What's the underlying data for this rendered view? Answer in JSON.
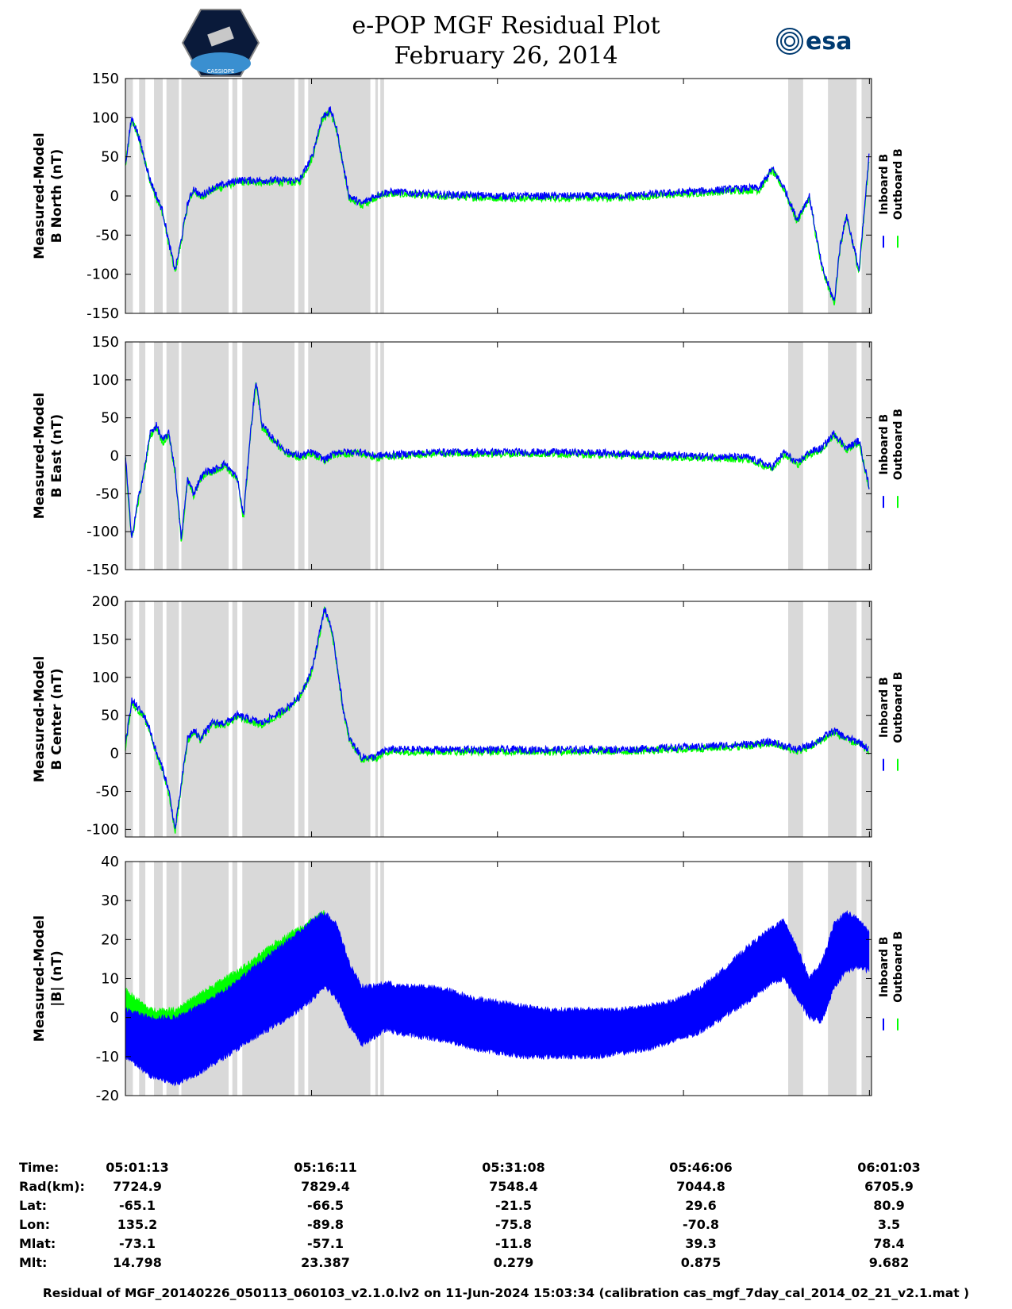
{
  "header": {
    "title": "e-POP MGF Residual Plot",
    "subtitle": "February 26, 2014",
    "logo_left_text": "CASSIOPE",
    "logo_right_text": "esa"
  },
  "colors": {
    "inboard": "#0000ff",
    "outboard": "#00ff00",
    "shade": "#d9d9d9"
  },
  "chart_data": [
    {
      "type": "line",
      "title": "B North",
      "ylabel": [
        "Measured-Model",
        "B North (nT)"
      ],
      "ylim": [
        -150,
        150
      ],
      "yticks": [
        -150,
        -100,
        -50,
        0,
        50,
        100,
        150
      ],
      "legend": [
        "Inboard B",
        "Outboard B"
      ],
      "legend_position": "right",
      "series_x_minutes": [
        0,
        0.5,
        1,
        1.5,
        2,
        2.5,
        3,
        3.5,
        4,
        4.5,
        5,
        5.5,
        6,
        6.5,
        7,
        8,
        9,
        10,
        11,
        12,
        13,
        14,
        15,
        15.8,
        16.5,
        17,
        17.5,
        18,
        19,
        20,
        21,
        22,
        25,
        30,
        35,
        40,
        45,
        50,
        51,
        52,
        53,
        54,
        55,
        56,
        57,
        57.5,
        58,
        59,
        59.8
      ],
      "series_y_inboard": [
        40,
        100,
        80,
        50,
        20,
        0,
        -20,
        -60,
        -95,
        -55,
        -10,
        10,
        0,
        5,
        10,
        15,
        20,
        20,
        20,
        20,
        20,
        20,
        50,
        100,
        110,
        85,
        40,
        0,
        -10,
        0,
        5,
        5,
        2,
        0,
        0,
        0,
        5,
        10,
        10,
        35,
        10,
        -30,
        0,
        -90,
        -135,
        -60,
        -25,
        -95,
        50
      ]
    },
    {
      "type": "line",
      "title": "B East",
      "ylabel": [
        "Measured-Model",
        "B East (nT)"
      ],
      "ylim": [
        -150,
        150
      ],
      "yticks": [
        -150,
        -100,
        -50,
        0,
        50,
        100,
        150
      ],
      "legend": [
        "Inboard B",
        "Outboard B"
      ],
      "legend_position": "right",
      "series_x_minutes": [
        0,
        0.5,
        1,
        1.5,
        2,
        2.5,
        3,
        3.5,
        4,
        4.5,
        5,
        5.5,
        6,
        6.5,
        7,
        8,
        9,
        9.5,
        10,
        10.5,
        11,
        12,
        13,
        14,
        15,
        16,
        17,
        18,
        19,
        20,
        25,
        30,
        35,
        40,
        45,
        50,
        51,
        52,
        53,
        54,
        55,
        56,
        57,
        58,
        59,
        59.8
      ],
      "series_y_inboard": [
        0,
        -110,
        -60,
        -20,
        30,
        40,
        20,
        30,
        -20,
        -110,
        -30,
        -50,
        -30,
        -20,
        -20,
        -10,
        -30,
        -80,
        20,
        100,
        40,
        20,
        5,
        0,
        5,
        -5,
        5,
        5,
        5,
        0,
        5,
        5,
        5,
        3,
        0,
        -2,
        -8,
        -15,
        5,
        -10,
        5,
        10,
        30,
        10,
        20,
        -40
      ]
    },
    {
      "type": "line",
      "title": "B Center",
      "ylabel": [
        "Measured-Model",
        "B Center (nT)"
      ],
      "ylim": [
        -110,
        200
      ],
      "yticks": [
        -100,
        -50,
        0,
        50,
        100,
        150,
        200
      ],
      "legend": [
        "Inboard B",
        "Outboard B"
      ],
      "legend_position": "right",
      "series_x_minutes": [
        0,
        0.5,
        1,
        1.5,
        2,
        2.5,
        3,
        3.5,
        4,
        4.5,
        5,
        5.5,
        6,
        6.5,
        7,
        8,
        9,
        10,
        11,
        12,
        13,
        14,
        15,
        16,
        16.5,
        17,
        17.5,
        18,
        19,
        20,
        21,
        22,
        25,
        30,
        35,
        40,
        45,
        50,
        52,
        54,
        55,
        56,
        57,
        58,
        59,
        59.8
      ],
      "series_y_inboard": [
        10,
        70,
        60,
        50,
        30,
        0,
        -20,
        -50,
        -100,
        -40,
        20,
        30,
        20,
        30,
        40,
        40,
        50,
        45,
        40,
        50,
        60,
        75,
        110,
        190,
        170,
        120,
        60,
        20,
        -5,
        -5,
        5,
        5,
        5,
        5,
        5,
        5,
        8,
        12,
        15,
        5,
        10,
        20,
        30,
        20,
        15,
        5
      ]
    },
    {
      "type": "area",
      "title": "|B|",
      "ylabel": [
        "Measured-Model",
        "|B| (nT)"
      ],
      "ylim": [
        -20,
        40
      ],
      "yticks": [
        -20,
        -10,
        0,
        10,
        20,
        30,
        40
      ],
      "legend": [
        "Inboard B",
        "Outboard B"
      ],
      "legend_position": "right",
      "series_x_minutes": [
        0,
        2,
        4,
        6,
        8,
        10,
        12,
        14,
        15.5,
        16,
        17,
        18,
        19,
        20,
        21,
        22,
        24,
        26,
        28,
        30,
        32,
        34,
        36,
        38,
        40,
        42,
        44,
        46,
        48,
        50,
        52,
        53,
        54,
        55,
        56,
        57,
        58,
        59,
        59.8
      ],
      "series_upper_inboard": [
        2,
        0,
        0,
        3,
        7,
        12,
        17,
        22,
        26,
        27,
        24,
        14,
        8,
        8,
        9,
        8,
        8,
        7,
        5,
        4,
        3,
        2,
        2,
        2,
        2,
        3,
        4,
        7,
        12,
        18,
        23,
        25,
        18,
        10,
        14,
        24,
        27,
        25,
        22
      ],
      "series_lower_inboard": [
        -10,
        -15,
        -17,
        -14,
        -10,
        -6,
        -2,
        2,
        6,
        8,
        5,
        -2,
        -7,
        -5,
        -3,
        -4,
        -5,
        -6,
        -8,
        -9,
        -10,
        -10,
        -10,
        -10,
        -9,
        -8,
        -6,
        -4,
        0,
        4,
        9,
        10,
        5,
        0,
        -1,
        8,
        12,
        13,
        12
      ],
      "series_upper_outboard": [
        7,
        2,
        2,
        6,
        10,
        14,
        19,
        23,
        26,
        27
      ],
      "series_lower_outboard": [
        -2,
        -5,
        -5,
        -2,
        2,
        6,
        10,
        14,
        17,
        20
      ]
    }
  ],
  "shaded_intervals_minutes": [
    [
      0,
      0.6
    ],
    [
      1.1,
      1.6
    ],
    [
      2.3,
      3.0
    ],
    [
      3.3,
      4.3
    ],
    [
      4.5,
      8.3
    ],
    [
      8.6,
      9.0
    ],
    [
      9.4,
      13.6
    ],
    [
      13.9,
      14.4
    ],
    [
      14.7,
      19.7
    ],
    [
      20.1,
      20.3
    ],
    [
      20.5,
      20.8
    ],
    [
      53.3,
      54.5
    ],
    [
      56.5,
      58.8
    ],
    [
      59.2,
      60.0
    ]
  ],
  "x_axis": {
    "tick_minutes": [
      0,
      14.97,
      29.92,
      44.88,
      59.83
    ],
    "range_minutes": [
      0,
      60
    ],
    "labels": {
      "time": "Time:",
      "rad": "Rad(km):",
      "lat": "Lat:",
      "lon": "Lon:",
      "mlat": "Mlat:",
      "mlt": "Mlt:"
    },
    "columns": [
      {
        "time": "05:01:13",
        "rad": "7724.9",
        "lat": "-65.1",
        "lon": "135.2",
        "mlat": "-73.1",
        "mlt": "14.798"
      },
      {
        "time": "05:16:11",
        "rad": "7829.4",
        "lat": "-66.5",
        "lon": "-89.8",
        "mlat": "-57.1",
        "mlt": "23.387"
      },
      {
        "time": "05:31:08",
        "rad": "7548.4",
        "lat": "-21.5",
        "lon": "-75.8",
        "mlat": "-11.8",
        "mlt": "0.279"
      },
      {
        "time": "05:46:06",
        "rad": "7044.8",
        "lat": "29.6",
        "lon": "-70.8",
        "mlat": "39.3",
        "mlt": "0.875"
      },
      {
        "time": "06:01:03",
        "rad": "6705.9",
        "lat": "80.9",
        "lon": "3.5",
        "mlat": "78.4",
        "mlt": "9.682"
      }
    ]
  },
  "footer": "Residual of MGF_20140226_050113_060103_v2.1.0.lv2 on 11-Jun-2024 15:03:34 (calibration cas_mgf_7day_cal_2014_02_21_v2.1.mat )"
}
